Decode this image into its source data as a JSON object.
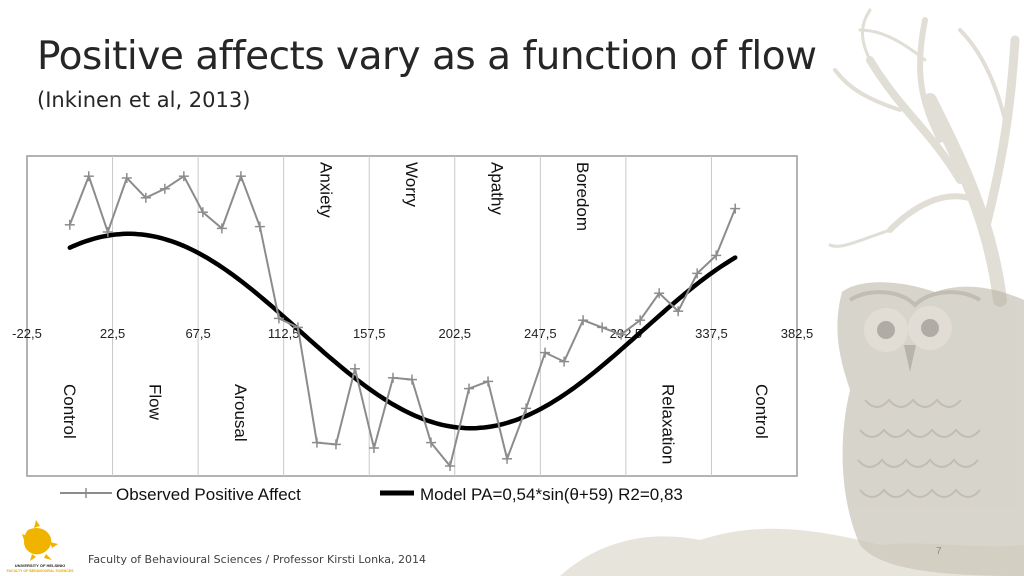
{
  "slide": {
    "title": "Positive affects vary as a function of flow",
    "subtitle": "(Inkinen et al, 2013)",
    "footer": "Faculty of Behavioural Sciences / Professor Kirsti Lonka, 2014",
    "page_number": "7",
    "logo_line1": "UNIVERSITY OF HELSINKI",
    "logo_line2": "FACULTY OF BEHAVIOURAL SCIENCES"
  },
  "colors": {
    "observed": "#8c8c8c",
    "model": "#000000",
    "grid": "#c8c8c8",
    "frame": "#9a9a9a",
    "logo": "#f0b400"
  },
  "chart_data": {
    "type": "line",
    "x_ticks": [
      -22.5,
      22.5,
      67.5,
      112.5,
      157.5,
      202.5,
      247.5,
      292.5,
      337.5,
      382.5
    ],
    "x_tick_labels": [
      "-22,5",
      "22,5",
      "67,5",
      "112,5",
      "157,5",
      "202,5",
      "247,5",
      "292,5",
      "337,5",
      "382,5"
    ],
    "xlim": [
      -22.5,
      382.5
    ],
    "ylim": [
      -1,
      1
    ],
    "grid": true,
    "legend_position": "bottom",
    "regions_top": [
      {
        "label": "Anxiety",
        "x": 135
      },
      {
        "label": "Worry",
        "x": 180
      },
      {
        "label": "Apathy",
        "x": 225
      },
      {
        "label": "Boredom",
        "x": 270
      }
    ],
    "regions_bottom": [
      {
        "label": "Control",
        "x": 0
      },
      {
        "label": "Flow",
        "x": 45
      },
      {
        "label": "Arousal",
        "x": 90
      },
      {
        "label": "Relaxation",
        "x": 315
      },
      {
        "label": "Control",
        "x": 360
      }
    ],
    "series": [
      {
        "name": "Observed Positive Affect",
        "x": [
          0,
          10,
          20,
          30,
          40,
          50,
          60,
          70,
          80,
          90,
          100,
          110,
          120,
          130,
          140,
          150,
          160,
          170,
          180,
          190,
          200,
          210,
          220,
          230,
          240,
          250,
          260,
          270,
          280,
          290,
          300,
          310,
          320,
          330,
          340,
          350
        ],
        "y": [
          0.59,
          0.86,
          0.55,
          0.85,
          0.74,
          0.79,
          0.86,
          0.66,
          0.57,
          0.86,
          0.58,
          0.07,
          0.02,
          -0.62,
          -0.63,
          -0.21,
          -0.65,
          -0.26,
          -0.27,
          -0.62,
          -0.75,
          -0.32,
          -0.28,
          -0.71,
          -0.43,
          -0.12,
          -0.17,
          0.06,
          0.02,
          -0.02,
          0.06,
          0.21,
          0.11,
          0.32,
          0.42,
          0.68
        ]
      },
      {
        "name": "Model PA=0,54*sin(θ+59) R2=0,83",
        "formula": "0.54*sin(theta+59)",
        "amplitude": 0.54,
        "phase_deg": 59,
        "x_range": [
          0,
          350
        ]
      }
    ]
  }
}
